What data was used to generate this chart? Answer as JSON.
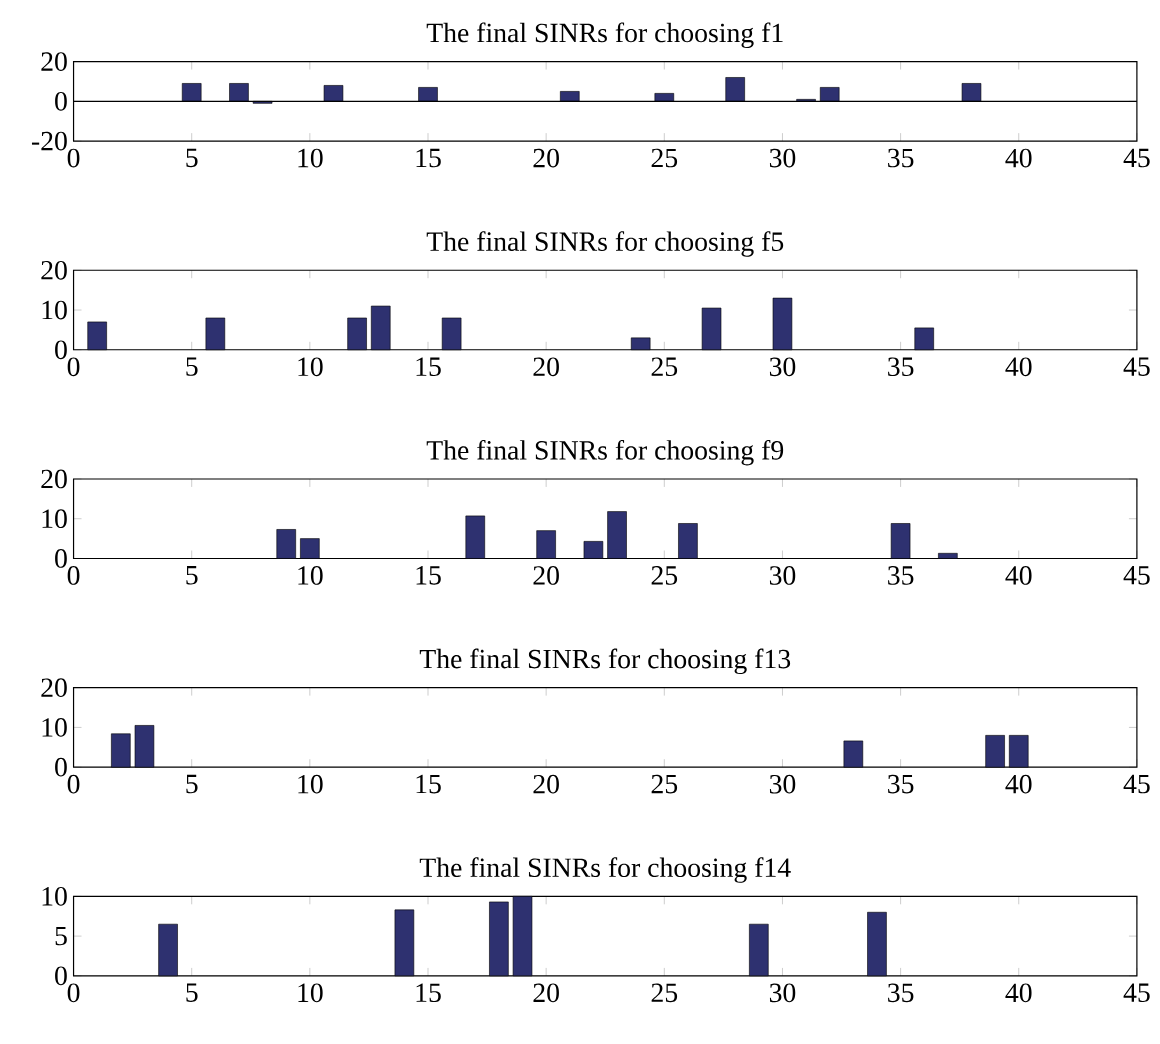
{
  "chart_data": [
    {
      "type": "bar",
      "title": "The final SINRs for choosing f1",
      "x": [
        5,
        7,
        8,
        11,
        15,
        21,
        25,
        28,
        31,
        32,
        38
      ],
      "values": [
        9,
        9,
        -1,
        8,
        7,
        5,
        4,
        12,
        1,
        7,
        9
      ],
      "color": "#2e3170",
      "xlim": [
        0,
        45
      ],
      "xticks": [
        0,
        5,
        10,
        15,
        20,
        25,
        30,
        35,
        40,
        45
      ],
      "ylim": [
        -20,
        20
      ],
      "yticks": [
        -20,
        0,
        20
      ]
    },
    {
      "type": "bar",
      "title": "The final SINRs for choosing f5",
      "x": [
        1,
        6,
        12,
        13,
        16,
        24,
        27,
        30,
        36
      ],
      "values": [
        7,
        8,
        8,
        11,
        8,
        3,
        10.5,
        13,
        5.5
      ],
      "color": "#2e3170",
      "xlim": [
        0,
        45
      ],
      "xticks": [
        0,
        5,
        10,
        15,
        20,
        25,
        30,
        35,
        40,
        45
      ],
      "ylim": [
        0,
        20
      ],
      "yticks": [
        0,
        10,
        20
      ]
    },
    {
      "type": "bar",
      "title": "The final SINRs for choosing f9",
      "x": [
        9,
        10,
        17,
        20,
        22,
        23,
        26,
        35,
        37
      ],
      "values": [
        7.3,
        5,
        10.7,
        7,
        4.3,
        11.8,
        8.8,
        8.8,
        1.3
      ],
      "color": "#2e3170",
      "xlim": [
        0,
        45
      ],
      "xticks": [
        0,
        5,
        10,
        15,
        20,
        25,
        30,
        35,
        40,
        45
      ],
      "ylim": [
        0,
        20
      ],
      "yticks": [
        0,
        10,
        20
      ]
    },
    {
      "type": "bar",
      "title": "The final SINRs for choosing f13",
      "x": [
        2,
        3,
        33,
        39,
        40
      ],
      "values": [
        8.4,
        10.5,
        6.6,
        8,
        8
      ],
      "color": "#2e3170",
      "xlim": [
        0,
        45
      ],
      "xticks": [
        0,
        5,
        10,
        15,
        20,
        25,
        30,
        35,
        40,
        45
      ],
      "ylim": [
        0,
        20
      ],
      "yticks": [
        0,
        10,
        20
      ]
    },
    {
      "type": "bar",
      "title": "The final SINRs for choosing f14",
      "x": [
        4,
        14,
        18,
        19,
        29,
        34
      ],
      "values": [
        6.5,
        8.3,
        9.3,
        10,
        6.5,
        8
      ],
      "color": "#2e3170",
      "xlim": [
        0,
        45
      ],
      "xticks": [
        0,
        5,
        10,
        15,
        20,
        25,
        30,
        35,
        40,
        45
      ],
      "ylim": [
        0,
        10
      ],
      "yticks": [
        0,
        5,
        10
      ]
    }
  ]
}
